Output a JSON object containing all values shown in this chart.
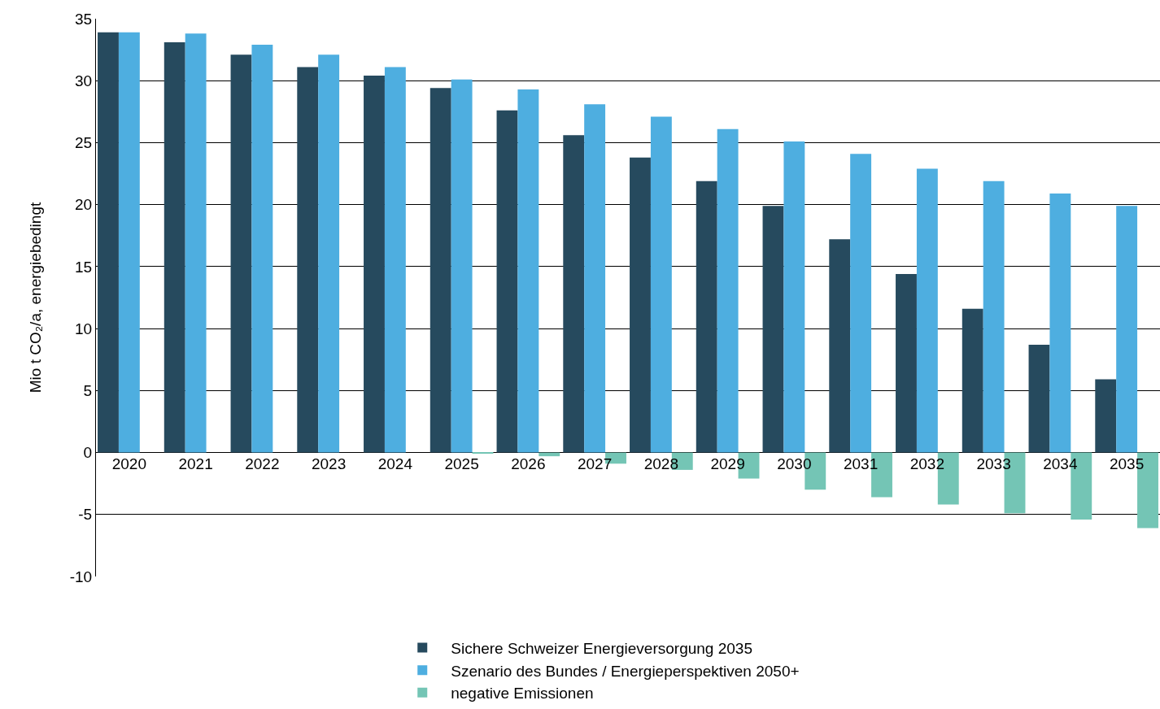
{
  "chart_data": {
    "type": "bar",
    "ylabel": "Mio t CO₂/a, energiebedingt",
    "categories": [
      "2020",
      "2021",
      "2022",
      "2023",
      "2024",
      "2025",
      "2026",
      "2027",
      "2028",
      "2029",
      "2030",
      "2031",
      "2032",
      "2033",
      "2034",
      "2035"
    ],
    "series": [
      {
        "name": "Sichere Schweizer Energieversorgung 2035",
        "color": "#264a5e",
        "values": [
          33.9,
          33.1,
          32.1,
          31.1,
          30.4,
          29.4,
          27.6,
          25.6,
          23.8,
          21.9,
          19.9,
          17.2,
          14.4,
          11.6,
          8.7,
          5.9
        ]
      },
      {
        "name": "Szenario des Bundes / Energieperspektiven 2050+",
        "color": "#4eaee0",
        "values": [
          33.9,
          33.8,
          32.9,
          32.1,
          31.1,
          30.1,
          29.3,
          28.1,
          27.1,
          26.1,
          25.1,
          24.1,
          22.9,
          21.9,
          20.9,
          19.9
        ]
      },
      {
        "name": "negative Emissionen",
        "color": "#74c5b5",
        "values": [
          0,
          0,
          0,
          0,
          0,
          -0.1,
          -0.3,
          -0.9,
          -1.4,
          -2.1,
          -3,
          -3.6,
          -4.2,
          -4.9,
          -5.4,
          -6.1
        ]
      }
    ],
    "ylim": [
      -10,
      35
    ],
    "yticks": [
      -10,
      -5,
      0,
      5,
      10,
      15,
      20,
      25,
      30,
      35
    ],
    "grid": "y",
    "legend": "bottom"
  }
}
